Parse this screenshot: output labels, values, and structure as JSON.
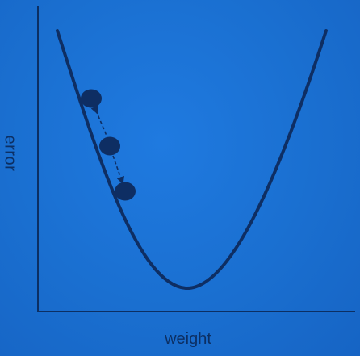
{
  "diagram": {
    "x_axis_label": "weight",
    "y_axis_label": "error",
    "colors": {
      "background": "#1a6fd0",
      "curve": "#0e2e63",
      "axes": "#0c2f63",
      "ball": "#0e2e63"
    },
    "balls": 3,
    "arrows": 2
  }
}
